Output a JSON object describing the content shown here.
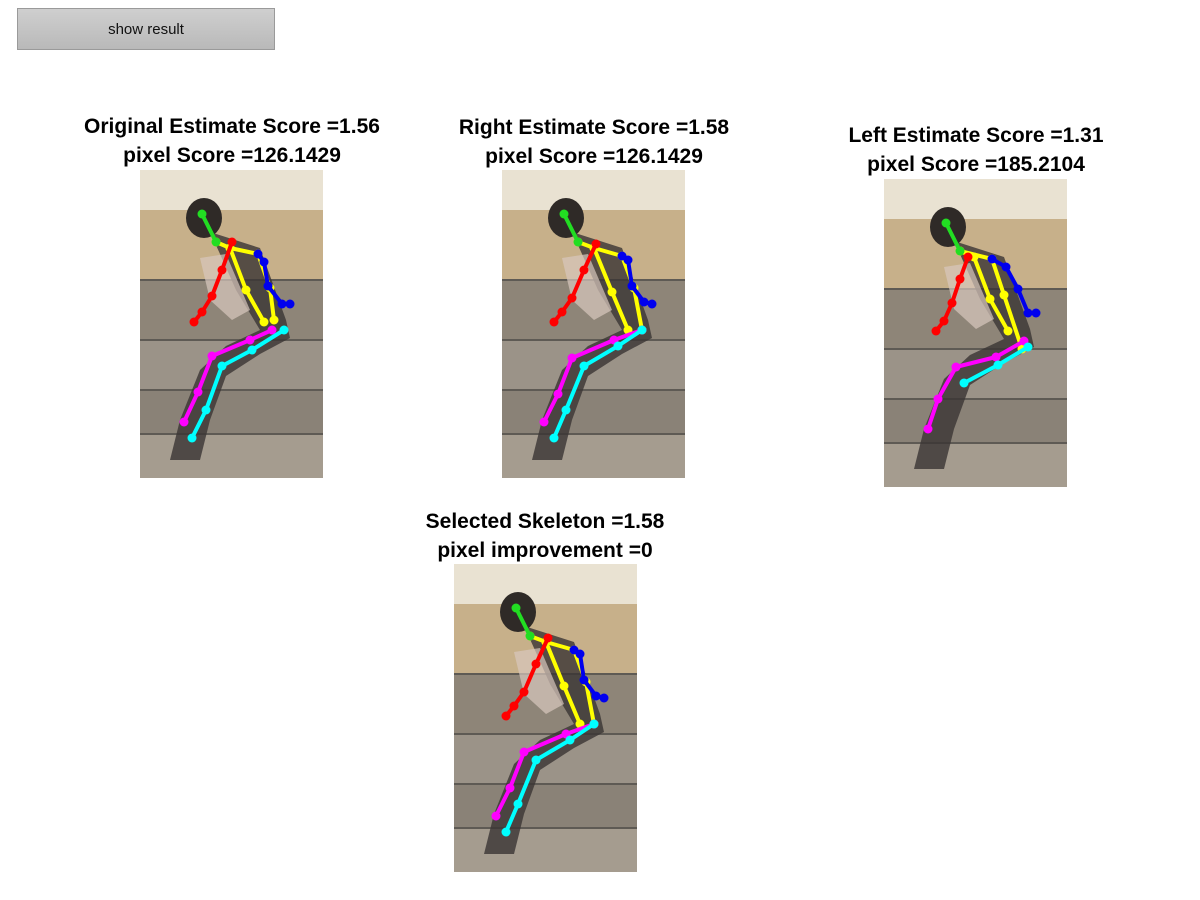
{
  "toolbar": {
    "show_result_label": "show result"
  },
  "panels": [
    {
      "id": "original",
      "line1": "Original Estimate Score =1.56",
      "line2": "pixel Score =126.1429",
      "pose": "original"
    },
    {
      "id": "right",
      "line1": "Right Estimate Score =1.58",
      "line2": "pixel Score =126.1429",
      "pose": "right"
    },
    {
      "id": "left",
      "line1": "Left Estimate Score =1.31",
      "line2": "pixel Score =185.2104",
      "pose": "left"
    },
    {
      "id": "selected",
      "line1": "Selected Skeleton =1.58",
      "line2": "pixel improvement =0",
      "pose": "right"
    }
  ],
  "limb_colors": {
    "head": "#22dd22",
    "torso": "#ffff00",
    "right_arm": "#ff0000",
    "left_arm": "#0000ee",
    "right_leg": "#ff00ff",
    "left_leg": "#00ffff"
  }
}
